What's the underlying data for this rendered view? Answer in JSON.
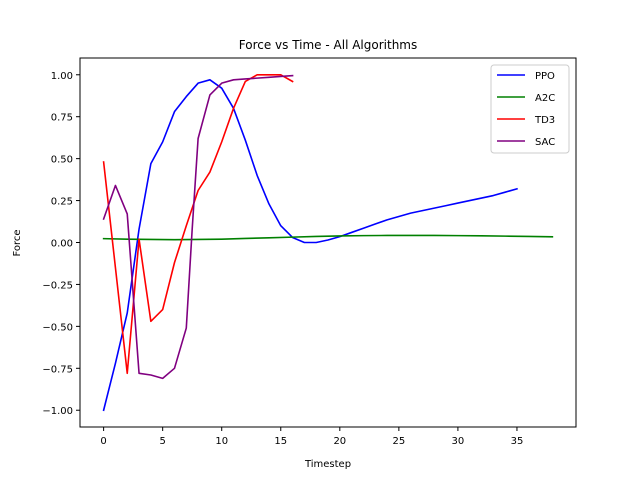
{
  "chart_data": {
    "type": "line",
    "title": "Force vs Time - All Algorithms",
    "xlabel": "Timestep",
    "ylabel": "Force",
    "xlim": [
      -2.0,
      40.0
    ],
    "ylim": [
      -1.1,
      1.1
    ],
    "xticks": [
      0,
      5,
      10,
      15,
      20,
      25,
      30,
      35
    ],
    "yticks": [
      -1.0,
      -0.75,
      -0.5,
      -0.25,
      0.0,
      0.25,
      0.5,
      0.75,
      1.0
    ],
    "ytick_labels": [
      "−1.00",
      "−0.75",
      "−0.50",
      "−0.25",
      "0.00",
      "0.25",
      "0.50",
      "0.75",
      "1.00"
    ],
    "grid": false,
    "legend_position": "top-right",
    "series": [
      {
        "name": "PPO",
        "color": "#0000ff",
        "x": [
          0,
          1,
          2,
          3,
          4,
          5,
          6,
          7,
          8,
          9,
          10,
          11,
          12,
          13,
          14,
          15,
          16,
          17,
          18,
          19,
          20,
          21,
          22,
          23,
          24,
          25,
          26,
          27,
          28,
          29,
          30,
          31,
          32,
          33,
          34,
          35
        ],
        "y": [
          -1.0,
          -0.72,
          -0.42,
          0.08,
          0.47,
          0.6,
          0.78,
          0.87,
          0.95,
          0.97,
          0.92,
          0.8,
          0.61,
          0.4,
          0.23,
          0.1,
          0.03,
          0.0,
          0.0,
          0.015,
          0.035,
          0.06,
          0.085,
          0.11,
          0.135,
          0.155,
          0.175,
          0.19,
          0.205,
          0.22,
          0.235,
          0.25,
          0.265,
          0.28,
          0.3,
          0.32
        ]
      },
      {
        "name": "A2C",
        "color": "#008000",
        "x": [
          0,
          2,
          4,
          6,
          8,
          10,
          12,
          14,
          16,
          18,
          20,
          22,
          24,
          26,
          28,
          30,
          32,
          34,
          36,
          38
        ],
        "y": [
          0.023,
          0.02,
          0.018,
          0.017,
          0.018,
          0.02,
          0.024,
          0.028,
          0.032,
          0.036,
          0.039,
          0.041,
          0.042,
          0.042,
          0.042,
          0.041,
          0.04,
          0.038,
          0.036,
          0.034
        ]
      },
      {
        "name": "TD3",
        "color": "#ff0000",
        "x": [
          0,
          1,
          2,
          3,
          4,
          5,
          6,
          7,
          8,
          9,
          10,
          11,
          12,
          13,
          14,
          15,
          16
        ],
        "y": [
          0.48,
          -0.15,
          -0.78,
          0.02,
          -0.47,
          -0.4,
          -0.12,
          0.1,
          0.31,
          0.42,
          0.6,
          0.8,
          0.96,
          1.0,
          1.0,
          1.0,
          0.96
        ]
      },
      {
        "name": "SAC",
        "color": "#800080",
        "x": [
          0,
          1,
          2,
          3,
          4,
          5,
          6,
          7,
          7.5,
          8,
          9,
          10,
          11,
          12,
          13,
          14,
          15,
          16
        ],
        "y": [
          0.14,
          0.34,
          0.17,
          -0.78,
          -0.79,
          -0.81,
          -0.75,
          -0.51,
          0.08,
          0.62,
          0.88,
          0.95,
          0.97,
          0.975,
          0.98,
          0.985,
          0.99,
          0.995
        ]
      }
    ]
  }
}
